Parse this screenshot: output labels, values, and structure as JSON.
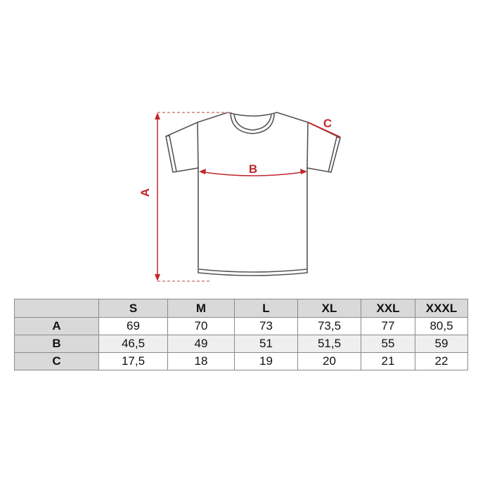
{
  "diagram": {
    "labels": {
      "length": "A",
      "width": "B",
      "sleeve": "C"
    },
    "accent_color": "#c0282d",
    "outline_color": "#555555"
  },
  "size_table": {
    "columns": [
      "S",
      "M",
      "L",
      "XL",
      "XXL",
      "XXXL"
    ],
    "rows": [
      {
        "label": "A",
        "values": [
          "69",
          "70",
          "73",
          "73,5",
          "77",
          "80,5"
        ]
      },
      {
        "label": "B",
        "values": [
          "46,5",
          "49",
          "51",
          "51,5",
          "55",
          "59"
        ]
      },
      {
        "label": "C",
        "values": [
          "17,5",
          "18",
          "19",
          "20",
          "21",
          "22"
        ]
      }
    ]
  }
}
